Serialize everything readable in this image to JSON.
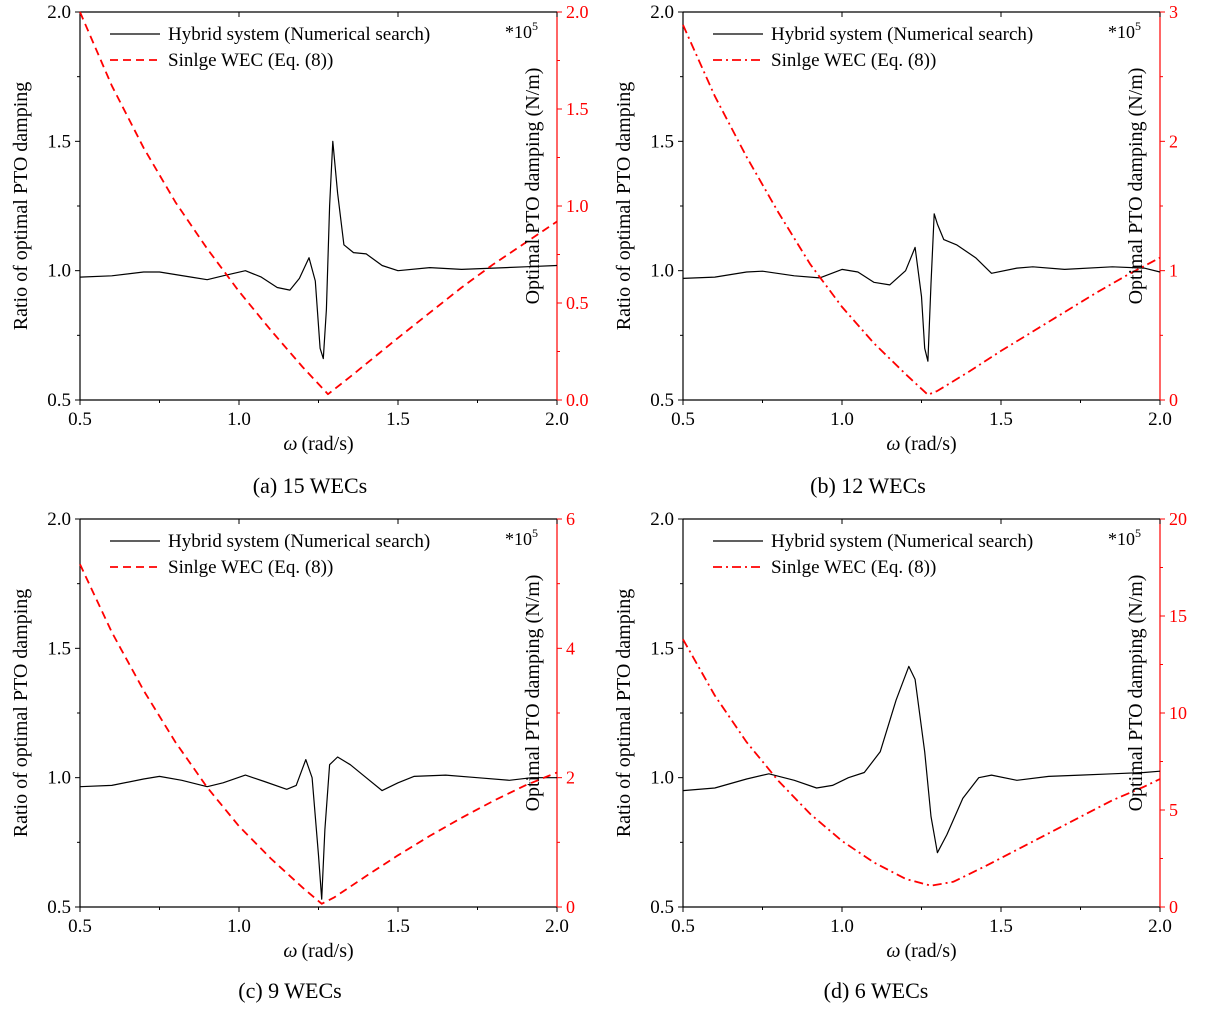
{
  "chart_data": [
    {
      "type": "line",
      "caption": "(a) 15 WECs",
      "xlabel_symbol": "ω",
      "xlabel_units": "(rad/s)",
      "ylabel": "Ratio of optimal PTO damping",
      "y2label": "Optimal PTO damping (N/m)",
      "y2_multiplier": "*10",
      "y2_exponent": "5",
      "xlim": [
        0.5,
        2.0
      ],
      "ylim": [
        0.5,
        2.0
      ],
      "y2lim": [
        0.0,
        2.0
      ],
      "xticks": [
        "0.5",
        "1.0",
        "1.5",
        "2.0"
      ],
      "yticks": [
        "0.5",
        "1.0",
        "1.5",
        "2.0"
      ],
      "y2ticks": [
        "0.0",
        "0.5",
        "1.0",
        "1.5",
        "2.0"
      ],
      "legend_position": "top-center",
      "colors": {
        "ratio": "#000000",
        "single": "#ff0000",
        "right_axis": "#ff0000"
      },
      "series": [
        {
          "name": "Hybrid system (Numerical search)",
          "axis": "left",
          "style": "solid",
          "points": [
            [
              0.5,
              0.975
            ],
            [
              0.6,
              0.98
            ],
            [
              0.7,
              0.995
            ],
            [
              0.75,
              0.995
            ],
            [
              0.85,
              0.975
            ],
            [
              0.9,
              0.965
            ],
            [
              0.95,
              0.98
            ],
            [
              1.02,
              1.0
            ],
            [
              1.07,
              0.975
            ],
            [
              1.12,
              0.935
            ],
            [
              1.16,
              0.925
            ],
            [
              1.19,
              0.97
            ],
            [
              1.22,
              1.05
            ],
            [
              1.24,
              0.96
            ],
            [
              1.255,
              0.7
            ],
            [
              1.265,
              0.66
            ],
            [
              1.275,
              0.85
            ],
            [
              1.285,
              1.25
            ],
            [
              1.295,
              1.5
            ],
            [
              1.31,
              1.3
            ],
            [
              1.33,
              1.1
            ],
            [
              1.36,
              1.07
            ],
            [
              1.4,
              1.065
            ],
            [
              1.45,
              1.02
            ],
            [
              1.5,
              1.0
            ],
            [
              1.6,
              1.012
            ],
            [
              1.7,
              1.005
            ],
            [
              1.8,
              1.01
            ],
            [
              1.9,
              1.015
            ],
            [
              2.0,
              1.02
            ]
          ]
        },
        {
          "name": "Sinlge WEC (Eq. (8))",
          "axis": "right",
          "style": "dashed",
          "points": [
            [
              0.5,
              2.0
            ],
            [
              0.6,
              1.62
            ],
            [
              0.7,
              1.3
            ],
            [
              0.8,
              1.02
            ],
            [
              0.9,
              0.78
            ],
            [
              1.0,
              0.56
            ],
            [
              1.1,
              0.36
            ],
            [
              1.2,
              0.17
            ],
            [
              1.28,
              0.03
            ],
            [
              1.35,
              0.12
            ],
            [
              1.5,
              0.32
            ],
            [
              1.6,
              0.45
            ],
            [
              1.7,
              0.58
            ],
            [
              1.8,
              0.7
            ],
            [
              1.9,
              0.81
            ],
            [
              2.0,
              0.92
            ]
          ]
        }
      ]
    },
    {
      "type": "line",
      "caption": "(b) 12 WECs",
      "xlabel_symbol": "ω",
      "xlabel_units": "(rad/s)",
      "ylabel": "Ratio of optimal PTO damping",
      "y2label": "Optimal PTO damping (N/m)",
      "y2_multiplier": "*10",
      "y2_exponent": "5",
      "xlim": [
        0.5,
        2.0
      ],
      "ylim": [
        0.5,
        2.0
      ],
      "y2lim": [
        0,
        3
      ],
      "xticks": [
        "0.5",
        "1.0",
        "1.5",
        "2.0"
      ],
      "yticks": [
        "0.5",
        "1.0",
        "1.5",
        "2.0"
      ],
      "y2ticks": [
        "0",
        "1",
        "2",
        "3"
      ],
      "legend_position": "top-center",
      "colors": {
        "ratio": "#000000",
        "single": "#ff0000",
        "right_axis": "#ff0000"
      },
      "series": [
        {
          "name": "Hybrid system (Numerical search)",
          "axis": "left",
          "style": "solid",
          "points": [
            [
              0.5,
              0.97
            ],
            [
              0.6,
              0.975
            ],
            [
              0.7,
              0.995
            ],
            [
              0.75,
              0.998
            ],
            [
              0.85,
              0.98
            ],
            [
              0.93,
              0.972
            ],
            [
              1.0,
              1.005
            ],
            [
              1.05,
              0.995
            ],
            [
              1.1,
              0.955
            ],
            [
              1.15,
              0.945
            ],
            [
              1.2,
              1.0
            ],
            [
              1.23,
              1.09
            ],
            [
              1.25,
              0.9
            ],
            [
              1.26,
              0.7
            ],
            [
              1.27,
              0.65
            ],
            [
              1.28,
              0.95
            ],
            [
              1.29,
              1.22
            ],
            [
              1.3,
              1.18
            ],
            [
              1.32,
              1.12
            ],
            [
              1.36,
              1.1
            ],
            [
              1.42,
              1.05
            ],
            [
              1.47,
              0.99
            ],
            [
              1.55,
              1.01
            ],
            [
              1.6,
              1.015
            ],
            [
              1.7,
              1.005
            ],
            [
              1.85,
              1.015
            ],
            [
              1.95,
              1.01
            ],
            [
              2.0,
              0.995
            ]
          ]
        },
        {
          "name": "Sinlge WEC (Eq. (8))",
          "axis": "right",
          "style": "dashdot",
          "points": [
            [
              0.5,
              2.9
            ],
            [
              0.6,
              2.35
            ],
            [
              0.7,
              1.88
            ],
            [
              0.8,
              1.45
            ],
            [
              0.9,
              1.05
            ],
            [
              1.0,
              0.72
            ],
            [
              1.1,
              0.44
            ],
            [
              1.2,
              0.2
            ],
            [
              1.27,
              0.04
            ],
            [
              1.3,
              0.07
            ],
            [
              1.4,
              0.22
            ],
            [
              1.5,
              0.38
            ],
            [
              1.6,
              0.53
            ],
            [
              1.7,
              0.68
            ],
            [
              1.8,
              0.83
            ],
            [
              1.9,
              0.97
            ],
            [
              2.0,
              1.1
            ]
          ]
        }
      ]
    },
    {
      "type": "line",
      "caption": "(c) 9 WECs",
      "xlabel_symbol": "ω",
      "xlabel_units": "(rad/s)",
      "ylabel": "Ratio of optimal PTO damping",
      "y2label": "Optimal PTO damping (N/m)",
      "y2_multiplier": "*10",
      "y2_exponent": "5",
      "xlim": [
        0.5,
        2.0
      ],
      "ylim": [
        0.5,
        2.0
      ],
      "y2lim": [
        0,
        6
      ],
      "xticks": [
        "0.5",
        "1.0",
        "1.5",
        "2.0"
      ],
      "yticks": [
        "0.5",
        "1.0",
        "1.5",
        "2.0"
      ],
      "y2ticks": [
        "0",
        "2",
        "4",
        "6"
      ],
      "legend_position": "top-center",
      "colors": {
        "ratio": "#000000",
        "single": "#ff0000",
        "right_axis": "#ff0000"
      },
      "series": [
        {
          "name": "Hybrid system (Numerical search)",
          "axis": "left",
          "style": "solid",
          "points": [
            [
              0.5,
              0.965
            ],
            [
              0.6,
              0.97
            ],
            [
              0.7,
              0.995
            ],
            [
              0.75,
              1.005
            ],
            [
              0.82,
              0.99
            ],
            [
              0.9,
              0.965
            ],
            [
              0.95,
              0.98
            ],
            [
              1.02,
              1.01
            ],
            [
              1.08,
              0.985
            ],
            [
              1.15,
              0.955
            ],
            [
              1.18,
              0.97
            ],
            [
              1.21,
              1.07
            ],
            [
              1.23,
              1.0
            ],
            [
              1.25,
              0.7
            ],
            [
              1.26,
              0.53
            ],
            [
              1.27,
              0.8
            ],
            [
              1.285,
              1.05
            ],
            [
              1.31,
              1.08
            ],
            [
              1.35,
              1.05
            ],
            [
              1.4,
              1.0
            ],
            [
              1.45,
              0.95
            ],
            [
              1.5,
              0.98
            ],
            [
              1.55,
              1.005
            ],
            [
              1.65,
              1.01
            ],
            [
              1.75,
              1.0
            ],
            [
              1.85,
              0.99
            ],
            [
              1.92,
              1.0
            ],
            [
              2.0,
              1.0
            ]
          ]
        },
        {
          "name": "Sinlge WEC (Eq. (8))",
          "axis": "right",
          "style": "dashed",
          "points": [
            [
              0.5,
              5.3
            ],
            [
              0.6,
              4.25
            ],
            [
              0.7,
              3.35
            ],
            [
              0.8,
              2.55
            ],
            [
              0.9,
              1.85
            ],
            [
              1.0,
              1.25
            ],
            [
              1.1,
              0.75
            ],
            [
              1.2,
              0.3
            ],
            [
              1.26,
              0.05
            ],
            [
              1.3,
              0.15
            ],
            [
              1.4,
              0.48
            ],
            [
              1.5,
              0.8
            ],
            [
              1.6,
              1.1
            ],
            [
              1.7,
              1.38
            ],
            [
              1.8,
              1.64
            ],
            [
              1.9,
              1.88
            ],
            [
              2.0,
              2.08
            ]
          ]
        }
      ]
    },
    {
      "type": "line",
      "caption": "(d) 6 WECs",
      "xlabel_symbol": "ω",
      "xlabel_units": "(rad/s)",
      "ylabel": "Ratio of optimal PTO damping",
      "y2label": "Optimal PTO damping (N/m)",
      "y2_multiplier": "*10",
      "y2_exponent": "5",
      "xlim": [
        0.5,
        2.0
      ],
      "ylim": [
        0.5,
        2.0
      ],
      "y2lim": [
        0,
        20
      ],
      "xticks": [
        "0.5",
        "1.0",
        "1.5",
        "2.0"
      ],
      "yticks": [
        "0.5",
        "1.0",
        "1.5",
        "2.0"
      ],
      "y2ticks": [
        "0",
        "5",
        "10",
        "15",
        "20"
      ],
      "legend_position": "top-center",
      "colors": {
        "ratio": "#000000",
        "single": "#ff0000",
        "right_axis": "#ff0000"
      },
      "series": [
        {
          "name": "Hybrid system (Numerical search)",
          "axis": "left",
          "style": "solid",
          "points": [
            [
              0.5,
              0.95
            ],
            [
              0.6,
              0.96
            ],
            [
              0.7,
              0.995
            ],
            [
              0.77,
              1.015
            ],
            [
              0.85,
              0.99
            ],
            [
              0.92,
              0.96
            ],
            [
              0.97,
              0.97
            ],
            [
              1.02,
              1.0
            ],
            [
              1.07,
              1.02
            ],
            [
              1.12,
              1.1
            ],
            [
              1.17,
              1.3
            ],
            [
              1.21,
              1.43
            ],
            [
              1.23,
              1.38
            ],
            [
              1.26,
              1.1
            ],
            [
              1.28,
              0.85
            ],
            [
              1.3,
              0.71
            ],
            [
              1.33,
              0.78
            ],
            [
              1.38,
              0.92
            ],
            [
              1.43,
              1.0
            ],
            [
              1.47,
              1.01
            ],
            [
              1.55,
              0.99
            ],
            [
              1.65,
              1.005
            ],
            [
              1.75,
              1.01
            ],
            [
              1.85,
              1.015
            ],
            [
              1.95,
              1.02
            ],
            [
              2.0,
              1.025
            ]
          ]
        },
        {
          "name": "Sinlge WEC (Eq. (8))",
          "axis": "right",
          "style": "dashdot",
          "points": [
            [
              0.5,
              13.8
            ],
            [
              0.6,
              10.9
            ],
            [
              0.7,
              8.5
            ],
            [
              0.8,
              6.5
            ],
            [
              0.9,
              4.8
            ],
            [
              1.0,
              3.4
            ],
            [
              1.1,
              2.3
            ],
            [
              1.2,
              1.45
            ],
            [
              1.28,
              1.1
            ],
            [
              1.35,
              1.3
            ],
            [
              1.45,
              2.1
            ],
            [
              1.55,
              2.95
            ],
            [
              1.65,
              3.8
            ],
            [
              1.75,
              4.65
            ],
            [
              1.85,
              5.5
            ],
            [
              1.95,
              6.2
            ],
            [
              2.0,
              6.6
            ]
          ]
        }
      ]
    }
  ]
}
